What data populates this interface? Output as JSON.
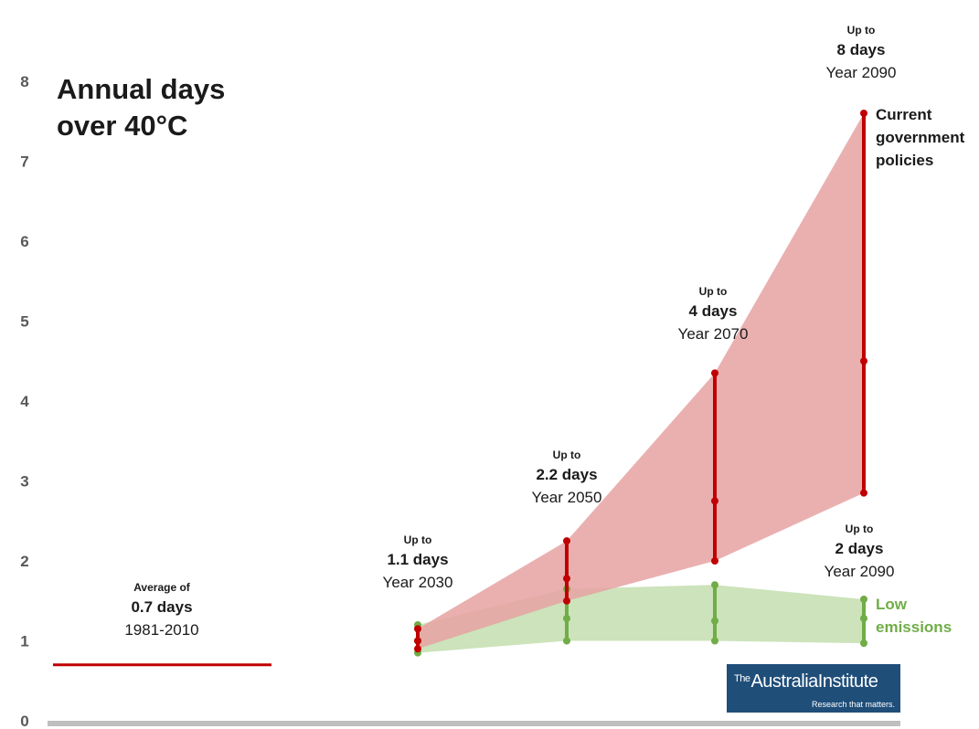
{
  "title": "Annual days over 40°C",
  "title_lines": [
    "Annual days",
    "over 40°C"
  ],
  "logo": {
    "name_prefix": "The",
    "name": "AustraliaInstitute",
    "tagline": "Research that matters."
  },
  "colors": {
    "current_policies": "#c00000",
    "current_band": "#e6a2a2",
    "low_emissions": "#70ad47",
    "low_band": "#c6e0b4",
    "baseline": "#c00000",
    "axis_label": "#595959",
    "x_axis": "#bfbfbf",
    "logo_bg": "#1f4e79"
  },
  "chart_data": {
    "type": "line",
    "title": "Annual days over 40°C",
    "xlabel": "",
    "ylabel": "",
    "ylim": [
      0,
      8
    ],
    "yticks": [
      "0",
      "1",
      "2",
      "3",
      "4",
      "5",
      "6",
      "7",
      "8"
    ],
    "x": [
      2030,
      2050,
      2070,
      2090
    ],
    "series": [
      {
        "name": "Current government policies",
        "low": [
          0.9,
          1.5,
          2.0,
          2.85
        ],
        "mid": [
          1.0,
          1.78,
          2.75,
          4.5
        ],
        "high": [
          1.15,
          2.25,
          4.35,
          7.6
        ]
      },
      {
        "name": "Low emissions",
        "low": [
          0.85,
          1.0,
          1.0,
          0.97
        ],
        "mid": [
          1.0,
          1.28,
          1.25,
          1.28
        ],
        "high": [
          1.2,
          1.65,
          1.7,
          1.52
        ]
      }
    ],
    "baseline": {
      "value": 0.7,
      "period": "1981-2010"
    }
  },
  "labels": {
    "baseline": {
      "small": "Average of",
      "value": "0.7 days",
      "period": "1981-2010"
    },
    "points": [
      {
        "small": "Up to",
        "value": "1.1 days",
        "year": "Year 2030"
      },
      {
        "small": "Up to",
        "value": "2.2 days",
        "year": "Year 2050"
      },
      {
        "small": "Up to",
        "value": "4 days",
        "year": "Year 2070"
      },
      {
        "small": "Up to",
        "value": "8 days",
        "year": "Year 2090"
      },
      {
        "small": "Up to",
        "value": "2 days",
        "year": "Year 2090"
      }
    ],
    "legend_current": [
      "Current",
      "government",
      "policies"
    ],
    "legend_low": [
      "Low",
      "emissions"
    ]
  }
}
